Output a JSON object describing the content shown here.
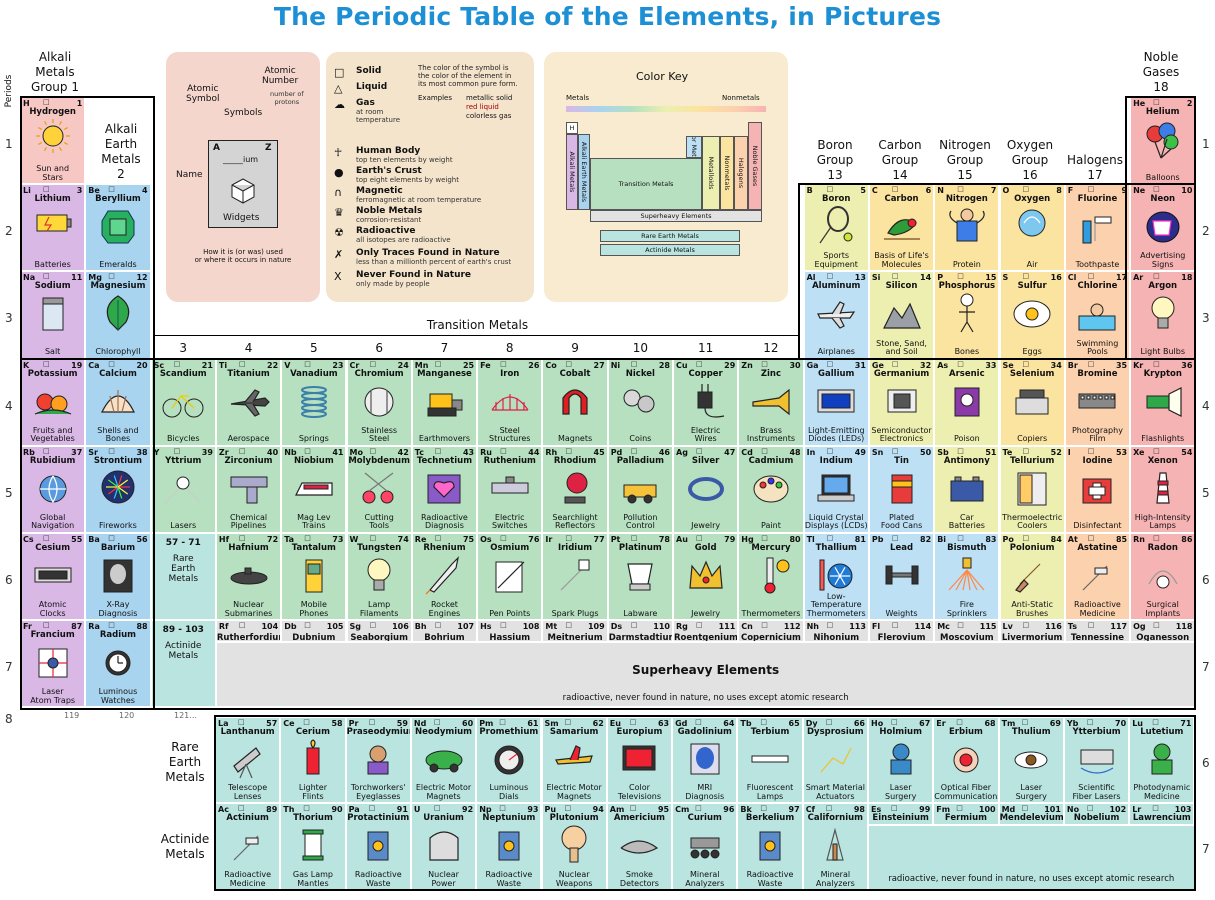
{
  "title": "The Periodic Table of the Elements, in Pictures",
  "periods_label": "Periods",
  "period_numbers": [
    "1",
    "2",
    "3",
    "4",
    "5",
    "6",
    "7",
    "8"
  ],
  "group_labels": {
    "g1": "Alkali\nMetals\nGroup 1",
    "g2": "Alkali\nEarth\nMetals\n2",
    "g13": "Boron\nGroup\n13",
    "g14": "Carbon\nGroup\n14",
    "g15": "Nitrogen\nGroup\n15",
    "g16": "Oxygen\nGroup\n16",
    "g17": "Halogens\n17",
    "g18": "Noble\nGases\n18",
    "transition": "Transition Metals",
    "tcols": [
      "3",
      "4",
      "5",
      "6",
      "7",
      "8",
      "9",
      "10",
      "11",
      "12"
    ],
    "rare_earth": "Rare\nEarth\nMetals",
    "actinide": "Actinide\nMetals"
  },
  "legend": {
    "atomic_symbol": "Atomic\nSymbol",
    "atomic_number": "Atomic\nNumber",
    "number_of_protons": "number of\nprotons",
    "symbols": "Symbols",
    "name": "Name",
    "key_cell": {
      "a": "A",
      "z": "Z",
      "ium": "ium",
      "widgets": "Widgets"
    },
    "how_used": "How it is (or was) used\nor where it occurs in nature",
    "solid": "Solid",
    "liquid": "Liquid",
    "gas": "Gas",
    "at_room_temp": "at room\ntemperature",
    "color_note": "The color of the symbol is\nthe color of the element in\nits most common pure form.",
    "examples": "Examples",
    "ex1": "metallic solid",
    "ex2": "red liquid",
    "ex3": "colorless gas",
    "human_body": "Human Body",
    "human_body_sub": "top ten elements by weight",
    "earths_crust": "Earth's Crust",
    "earths_crust_sub": "top eight elements by weight",
    "magnetic": "Magnetic",
    "magnetic_sub": "ferromagnetic at room temperature",
    "noble_metals": "Noble Metals",
    "noble_metals_sub": "corrosion-resistant",
    "radioactive": "Radioactive",
    "radioactive_sub": "all isotopes are radioactive",
    "traces": "Only Traces Found in Nature",
    "traces_sub": "less than a millionth percent of earth's crust",
    "never": "Never Found in Nature",
    "never_sub": "only made by people"
  },
  "color_key": {
    "title": "Color Key",
    "metals": "Metals",
    "nonmetals": "Nonmetals",
    "h": "H",
    "alkali": "Alkali Metals",
    "alkali_earth": "Alkali Earth Metals",
    "transition": "Transition Metals",
    "superheavy": "Superheavy Elements",
    "rare_earth": "Rare Earth Metals",
    "actinide": "Actinide Metals",
    "nonmetals_v": "Nonmetals",
    "metalloids": "Metalloids",
    "poor": "Poor Metals",
    "halogens": "Halogens",
    "noble": "Noble Gases"
  },
  "colors": {
    "alkali": "#d9b8e6",
    "alkali_earth": "#a9d4f0",
    "transition": "#b6e0c0",
    "rare": "#b9e4e0",
    "poor": "#bde0f5",
    "metalloid": "#ecefb0",
    "nonmetal": "#fbe3a0",
    "halogen": "#fcd2ae",
    "noble": "#f6b3b3",
    "super": "#e2e2e2",
    "hydrogen": "#f7c7c3",
    "legend_bg": "#f4d6cc",
    "key_bg": "#f8ebcf"
  },
  "elements": [
    {
      "s": "H",
      "n": "1",
      "name": "Hydrogen",
      "use": "Sun and\nStars",
      "icon": "sun"
    },
    {
      "s": "He",
      "n": "2",
      "name": "Helium",
      "use": "Balloons",
      "icon": "balloons"
    },
    {
      "s": "Li",
      "n": "3",
      "name": "Lithium",
      "use": "Batteries",
      "icon": "battery"
    },
    {
      "s": "Be",
      "n": "4",
      "name": "Beryllium",
      "use": "Emeralds",
      "icon": "emerald"
    },
    {
      "s": "B",
      "n": "5",
      "name": "Boron",
      "use": "Sports\nEquipment",
      "icon": "racket"
    },
    {
      "s": "C",
      "n": "6",
      "name": "Carbon",
      "use": "Basis of Life's\nMolecules",
      "icon": "bird"
    },
    {
      "s": "N",
      "n": "7",
      "name": "Nitrogen",
      "use": "Protein",
      "icon": "strong"
    },
    {
      "s": "O",
      "n": "8",
      "name": "Oxygen",
      "use": "Air",
      "icon": "lungs"
    },
    {
      "s": "F",
      "n": "9",
      "name": "Fluorine",
      "use": "Toothpaste",
      "icon": "tooth"
    },
    {
      "s": "Ne",
      "n": "10",
      "name": "Neon",
      "use": "Advertising\nSigns",
      "icon": "neon"
    },
    {
      "s": "Na",
      "n": "11",
      "name": "Sodium",
      "use": "Salt",
      "icon": "salt"
    },
    {
      "s": "Mg",
      "n": "12",
      "name": "Magnesium",
      "use": "Chlorophyll",
      "icon": "leaf"
    },
    {
      "s": "Al",
      "n": "13",
      "name": "Aluminum",
      "use": "Airplanes",
      "icon": "plane"
    },
    {
      "s": "Si",
      "n": "14",
      "name": "Silicon",
      "use": "Stone, Sand,\nand Soil",
      "icon": "rocks"
    },
    {
      "s": "P",
      "n": "15",
      "name": "Phosphorus",
      "use": "Bones",
      "icon": "skeleton"
    },
    {
      "s": "S",
      "n": "16",
      "name": "Sulfur",
      "use": "Eggs",
      "icon": "egg"
    },
    {
      "s": "Cl",
      "n": "17",
      "name": "Chlorine",
      "use": "Swimming\nPools",
      "icon": "pool"
    },
    {
      "s": "Ar",
      "n": "18",
      "name": "Argon",
      "use": "Light Bulbs",
      "icon": "bulb"
    },
    {
      "s": "K",
      "n": "19",
      "name": "Potassium",
      "use": "Fruits and\nVegetables",
      "icon": "fruit"
    },
    {
      "s": "Ca",
      "n": "20",
      "name": "Calcium",
      "use": "Shells and\nBones",
      "icon": "shell"
    },
    {
      "s": "Sc",
      "n": "21",
      "name": "Scandium",
      "use": "Bicycles",
      "icon": "bike"
    },
    {
      "s": "Ti",
      "n": "22",
      "name": "Titanium",
      "use": "Aerospace",
      "icon": "jet"
    },
    {
      "s": "V",
      "n": "23",
      "name": "Vanadium",
      "use": "Springs",
      "icon": "spring"
    },
    {
      "s": "Cr",
      "n": "24",
      "name": "Chromium",
      "use": "Stainless\nSteel",
      "icon": "fork"
    },
    {
      "s": "Mn",
      "n": "25",
      "name": "Manganese",
      "use": "Earthmovers",
      "icon": "dozer"
    },
    {
      "s": "Fe",
      "n": "26",
      "name": "Iron",
      "use": "Steel\nStructures",
      "icon": "bridge"
    },
    {
      "s": "Co",
      "n": "27",
      "name": "Cobalt",
      "use": "Magnets",
      "icon": "magnet"
    },
    {
      "s": "Ni",
      "n": "28",
      "name": "Nickel",
      "use": "Coins",
      "icon": "coins"
    },
    {
      "s": "Cu",
      "n": "29",
      "name": "Copper",
      "use": "Electric\nWires",
      "icon": "plug"
    },
    {
      "s": "Zn",
      "n": "30",
      "name": "Zinc",
      "use": "Brass\nInstruments",
      "icon": "trumpet"
    },
    {
      "s": "Ga",
      "n": "31",
      "name": "Gallium",
      "use": "Light-Emitting\nDiodes (LEDs)",
      "icon": "clock"
    },
    {
      "s": "Ge",
      "n": "32",
      "name": "Germanium",
      "use": "Semiconductor\nElectronics",
      "icon": "chip"
    },
    {
      "s": "As",
      "n": "33",
      "name": "Arsenic",
      "use": "Poison",
      "icon": "poison"
    },
    {
      "s": "Se",
      "n": "34",
      "name": "Selenium",
      "use": "Copiers",
      "icon": "copier"
    },
    {
      "s": "Br",
      "n": "35",
      "name": "Bromine",
      "use": "Photography\nFilm",
      "icon": "film"
    },
    {
      "s": "Kr",
      "n": "36",
      "name": "Krypton",
      "use": "Flashlights",
      "icon": "flashlight"
    },
    {
      "s": "Rb",
      "n": "37",
      "name": "Rubidium",
      "use": "Global\nNavigation",
      "icon": "globe"
    },
    {
      "s": "Sr",
      "n": "38",
      "name": "Strontium",
      "use": "Fireworks",
      "icon": "fireworks"
    },
    {
      "s": "Y",
      "n": "39",
      "name": "Yttrium",
      "use": "Lasers",
      "icon": "laser"
    },
    {
      "s": "Zr",
      "n": "40",
      "name": "Zirconium",
      "use": "Chemical\nPipelines",
      "icon": "pipe"
    },
    {
      "s": "Nb",
      "n": "41",
      "name": "Niobium",
      "use": "Mag Lev\nTrains",
      "icon": "train"
    },
    {
      "s": "Mo",
      "n": "42",
      "name": "Molybdenum",
      "use": "Cutting\nTools",
      "icon": "scissors"
    },
    {
      "s": "Tc",
      "n": "43",
      "name": "Technetium",
      "use": "Radioactive\nDiagnosis",
      "icon": "heart"
    },
    {
      "s": "Ru",
      "n": "44",
      "name": "Ruthenium",
      "use": "Electric\nSwitches",
      "icon": "switch"
    },
    {
      "s": "Rh",
      "n": "45",
      "name": "Rhodium",
      "use": "Searchlight\nReflectors",
      "icon": "searchlight"
    },
    {
      "s": "Pd",
      "n": "46",
      "name": "Palladium",
      "use": "Pollution\nControl",
      "icon": "car"
    },
    {
      "s": "Ag",
      "n": "47",
      "name": "Silver",
      "use": "Jewelry",
      "icon": "ring"
    },
    {
      "s": "Cd",
      "n": "48",
      "name": "Cadmium",
      "use": "Paint",
      "icon": "palette"
    },
    {
      "s": "In",
      "n": "49",
      "name": "Indium",
      "use": "Liquid Crystal\nDisplays (LCDs)",
      "icon": "laptop"
    },
    {
      "s": "Sn",
      "n": "50",
      "name": "Tin",
      "use": "Plated\nFood Cans",
      "icon": "can"
    },
    {
      "s": "Sb",
      "n": "51",
      "name": "Antimony",
      "use": "Car\nBatteries",
      "icon": "carbattery"
    },
    {
      "s": "Te",
      "n": "52",
      "name": "Tellurium",
      "use": "Thermoelectric\nCoolers",
      "icon": "fridge"
    },
    {
      "s": "I",
      "n": "53",
      "name": "Iodine",
      "use": "Disinfectant",
      "icon": "firstaid"
    },
    {
      "s": "Xe",
      "n": "54",
      "name": "Xenon",
      "use": "High-Intensity\nLamps",
      "icon": "lighthouse"
    },
    {
      "s": "Cs",
      "n": "55",
      "name": "Cesium",
      "use": "Atomic\nClocks",
      "icon": "atomclock"
    },
    {
      "s": "Ba",
      "n": "56",
      "name": "Barium",
      "use": "X-Ray\nDiagnosis",
      "icon": "xray"
    },
    {
      "s": "Hf",
      "n": "72",
      "name": "Hafnium",
      "use": "Nuclear\nSubmarines",
      "icon": "sub"
    },
    {
      "s": "Ta",
      "n": "73",
      "name": "Tantalum",
      "use": "Mobile\nPhones",
      "icon": "phone"
    },
    {
      "s": "W",
      "n": "74",
      "name": "Tungsten",
      "use": "Lamp\nFilaments",
      "icon": "bulb"
    },
    {
      "s": "Re",
      "n": "75",
      "name": "Rhenium",
      "use": "Rocket\nEngines",
      "icon": "rocket"
    },
    {
      "s": "Os",
      "n": "76",
      "name": "Osmium",
      "use": "Pen Points",
      "icon": "pen"
    },
    {
      "s": "Ir",
      "n": "77",
      "name": "Iridium",
      "use": "Spark Plugs",
      "icon": "sparkplug"
    },
    {
      "s": "Pt",
      "n": "78",
      "name": "Platinum",
      "use": "Labware",
      "icon": "labware"
    },
    {
      "s": "Au",
      "n": "79",
      "name": "Gold",
      "use": "Jewelry",
      "icon": "crown"
    },
    {
      "s": "Hg",
      "n": "80",
      "name": "Mercury",
      "use": "Thermometers",
      "icon": "thermometer"
    },
    {
      "s": "Tl",
      "n": "81",
      "name": "Thallium",
      "use": "Low-Temperature\nThermometers",
      "icon": "snow"
    },
    {
      "s": "Pb",
      "n": "82",
      "name": "Lead",
      "use": "Weights",
      "icon": "dumbbell"
    },
    {
      "s": "Bi",
      "n": "83",
      "name": "Bismuth",
      "use": "Fire\nSprinklers",
      "icon": "sprinkler"
    },
    {
      "s": "Po",
      "n": "84",
      "name": "Polonium",
      "use": "Anti-Static\nBrushes",
      "icon": "brush"
    },
    {
      "s": "At",
      "n": "85",
      "name": "Astatine",
      "use": "Radioactive\nMedicine",
      "icon": "syringe"
    },
    {
      "s": "Rn",
      "n": "86",
      "name": "Radon",
      "use": "Surgical\nImplants",
      "icon": "implant"
    },
    {
      "s": "Fr",
      "n": "87",
      "name": "Francium",
      "use": "Laser\nAtom Traps",
      "icon": "trap"
    },
    {
      "s": "Ra",
      "n": "88",
      "name": "Radium",
      "use": "Luminous\nWatches",
      "icon": "watch"
    },
    {
      "s": "Rf",
      "n": "104",
      "name": "Rutherfordium",
      "use": "",
      "icon": ""
    },
    {
      "s": "Db",
      "n": "105",
      "name": "Dubnium",
      "use": "",
      "icon": ""
    },
    {
      "s": "Sg",
      "n": "106",
      "name": "Seaborgium",
      "use": "",
      "icon": ""
    },
    {
      "s": "Bh",
      "n": "107",
      "name": "Bohrium",
      "use": "",
      "icon": ""
    },
    {
      "s": "Hs",
      "n": "108",
      "name": "Hassium",
      "use": "",
      "icon": ""
    },
    {
      "s": "Mt",
      "n": "109",
      "name": "Meitnerium",
      "use": "",
      "icon": ""
    },
    {
      "s": "Ds",
      "n": "110",
      "name": "Darmstadtium",
      "use": "",
      "icon": ""
    },
    {
      "s": "Rg",
      "n": "111",
      "name": "Roentgenium",
      "use": "",
      "icon": ""
    },
    {
      "s": "Cn",
      "n": "112",
      "name": "Copernicium",
      "use": "",
      "icon": ""
    },
    {
      "s": "Nh",
      "n": "113",
      "name": "Nihonium",
      "use": "",
      "icon": ""
    },
    {
      "s": "Fl",
      "n": "114",
      "name": "Flerovium",
      "use": "",
      "icon": ""
    },
    {
      "s": "Mc",
      "n": "115",
      "name": "Moscovium",
      "use": "",
      "icon": ""
    },
    {
      "s": "Lv",
      "n": "116",
      "name": "Livermorium",
      "use": "",
      "icon": ""
    },
    {
      "s": "Ts",
      "n": "117",
      "name": "Tennessine",
      "use": "",
      "icon": ""
    },
    {
      "s": "Og",
      "n": "118",
      "name": "Oganesson",
      "use": "",
      "icon": ""
    },
    {
      "s": "La",
      "n": "57",
      "name": "Lanthanum",
      "use": "Telescope\nLenses",
      "icon": "telescope"
    },
    {
      "s": "Ce",
      "n": "58",
      "name": "Cerium",
      "use": "Lighter\nFlints",
      "icon": "lighter"
    },
    {
      "s": "Pr",
      "n": "59",
      "name": "Praseodymium",
      "use": "Torchworkers'\nEyeglasses",
      "icon": "glasses"
    },
    {
      "s": "Nd",
      "n": "60",
      "name": "Neodymium",
      "use": "Electric Motor\nMagnets",
      "icon": "ecar"
    },
    {
      "s": "Pm",
      "n": "61",
      "name": "Promethium",
      "use": "Luminous\nDials",
      "icon": "dial"
    },
    {
      "s": "Sm",
      "n": "62",
      "name": "Samarium",
      "use": "Electric Motor\nMagnets",
      "icon": "rcplane"
    },
    {
      "s": "Eu",
      "n": "63",
      "name": "Europium",
      "use": "Color\nTelevisions",
      "icon": "tv"
    },
    {
      "s": "Gd",
      "n": "64",
      "name": "Gadolinium",
      "use": "MRI\nDiagnosis",
      "icon": "mri"
    },
    {
      "s": "Tb",
      "n": "65",
      "name": "Terbium",
      "use": "Fluorescent\nLamps",
      "icon": "tube"
    },
    {
      "s": "Dy",
      "n": "66",
      "name": "Dysprosium",
      "use": "Smart Material\nActuators",
      "icon": "robot"
    },
    {
      "s": "Ho",
      "n": "67",
      "name": "Holmium",
      "use": "Laser\nSurgery",
      "icon": "surgeon"
    },
    {
      "s": "Er",
      "n": "68",
      "name": "Erbium",
      "use": "Optical Fiber\nCommunications",
      "icon": "fiber"
    },
    {
      "s": "Tm",
      "n": "69",
      "name": "Thulium",
      "use": "Laser\nSurgery",
      "icon": "eye"
    },
    {
      "s": "Yb",
      "n": "70",
      "name": "Ytterbium",
      "use": "Scientific\nFiber Lasers",
      "icon": "device"
    },
    {
      "s": "Lu",
      "n": "71",
      "name": "Lutetium",
      "use": "Photodynamic\nMedicine",
      "icon": "doctor"
    },
    {
      "s": "Ac",
      "n": "89",
      "name": "Actinium",
      "use": "Radioactive\nMedicine",
      "icon": "syringe"
    },
    {
      "s": "Th",
      "n": "90",
      "name": "Thorium",
      "use": "Gas Lamp\nMantles",
      "icon": "lantern"
    },
    {
      "s": "Pa",
      "n": "91",
      "name": "Protactinium",
      "use": "Radioactive\nWaste",
      "icon": "barrel"
    },
    {
      "s": "U",
      "n": "92",
      "name": "Uranium",
      "use": "Nuclear\nPower",
      "icon": "reactor"
    },
    {
      "s": "Np",
      "n": "93",
      "name": "Neptunium",
      "use": "Radioactive\nWaste",
      "icon": "barrel"
    },
    {
      "s": "Pu",
      "n": "94",
      "name": "Plutonium",
      "use": "Nuclear\nWeapons",
      "icon": "mushroom"
    },
    {
      "s": "Am",
      "n": "95",
      "name": "Americium",
      "use": "Smoke\nDetectors",
      "icon": "smoke"
    },
    {
      "s": "Cm",
      "n": "96",
      "name": "Curium",
      "use": "Mineral\nAnalyzers",
      "icon": "rover"
    },
    {
      "s": "Bk",
      "n": "97",
      "name": "Berkelium",
      "use": "Radioactive\nWaste",
      "icon": "barrel"
    },
    {
      "s": "Cf",
      "n": "98",
      "name": "Californium",
      "use": "Mineral\nAnalyzers",
      "icon": "drill"
    },
    {
      "s": "Es",
      "n": "99",
      "name": "Einsteinium",
      "use": "",
      "icon": ""
    },
    {
      "s": "Fm",
      "n": "100",
      "name": "Fermium",
      "use": "",
      "icon": ""
    },
    {
      "s": "Md",
      "n": "101",
      "name": "Mendelevium",
      "use": "",
      "icon": ""
    },
    {
      "s": "No",
      "n": "102",
      "name": "Nobelium",
      "use": "",
      "icon": ""
    },
    {
      "s": "Lr",
      "n": "103",
      "name": "Lawrencium",
      "use": "",
      "icon": ""
    }
  ],
  "placeholders": {
    "lanth": "57 - 71",
    "lanth_label": "Rare\nEarth\nMetals",
    "act": "89 - 103",
    "act_label": "Actinide\nMetals",
    "superheavy_title": "Superheavy Elements",
    "superheavy_sub": "radioactive, never found in nature, no uses except atomic research",
    "actinide_sub": "radioactive, never found in nature, no uses except atomic research",
    "period8": [
      "119",
      "120",
      "121..."
    ]
  }
}
